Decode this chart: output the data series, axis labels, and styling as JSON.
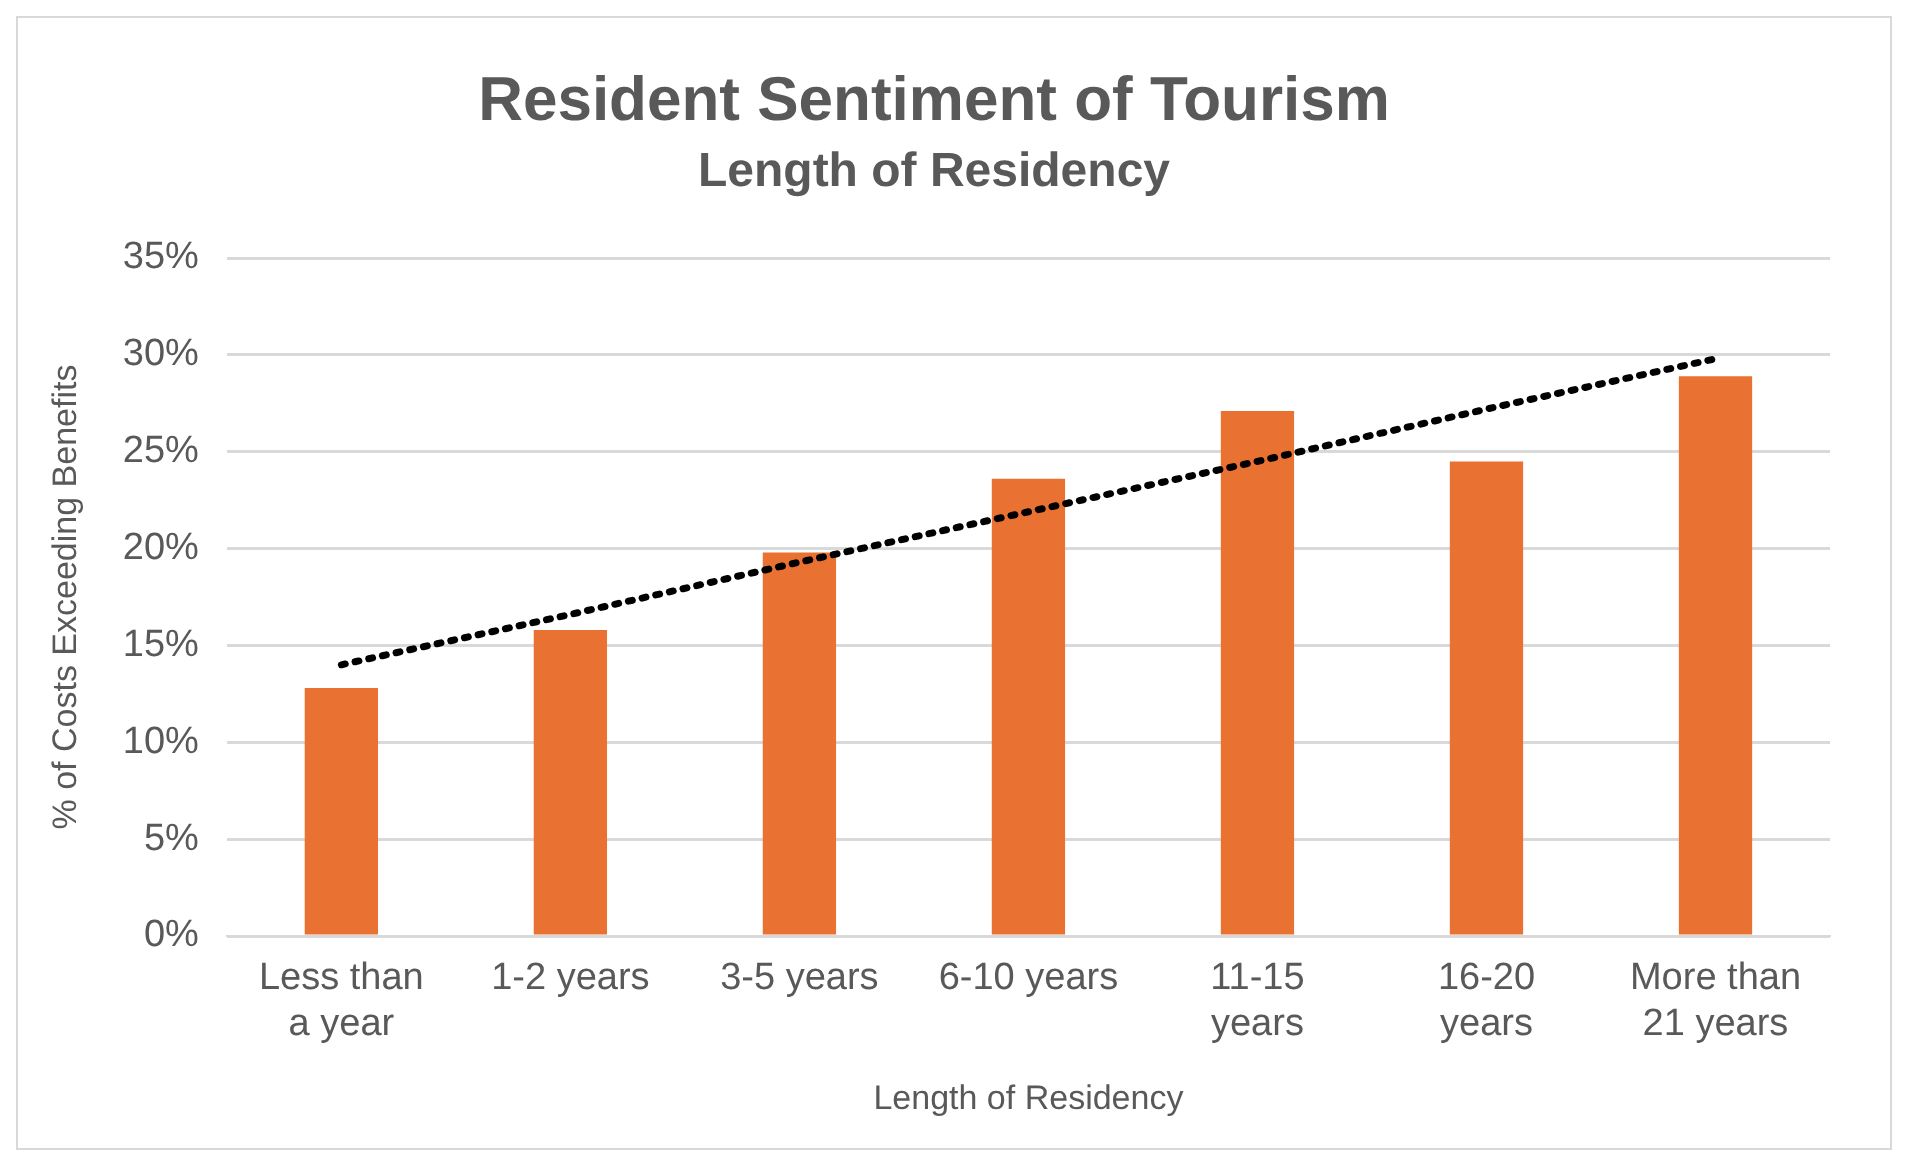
{
  "chart_data": {
    "type": "bar",
    "title": "Resident Sentiment of Tourism",
    "subtitle": "Length of Residency",
    "xlabel": "Length of Residency",
    "ylabel": "% of Costs Exceeding Benefits",
    "categories": [
      "Less than a year",
      "1-2 years",
      "3-5 years",
      "6-10 years",
      "11-15 years",
      "16-20 years",
      "More than 21 years"
    ],
    "series": [
      {
        "color": "#e97132",
        "values": [
          12.8,
          15.8,
          19.8,
          23.6,
          27.1,
          24.5,
          28.9
        ]
      },
      {
        "type": "line",
        "color": "#000000",
        "line_style": "dotted",
        "marker": "none",
        "values": [
          14.0,
          16.6,
          19.3,
          21.9,
          24.5,
          27.2,
          29.8
        ]
      }
    ],
    "ylim": [
      0,
      35
    ],
    "yticks": [
      {
        "value": 0,
        "label": "0%"
      },
      {
        "value": 5,
        "label": "5%"
      },
      {
        "value": 10,
        "label": "10%"
      },
      {
        "value": 15,
        "label": "15%"
      },
      {
        "value": 20,
        "label": "20%"
      },
      {
        "value": 25,
        "label": "25%"
      },
      {
        "value": 30,
        "label": "30%"
      },
      {
        "value": 35,
        "label": "35%"
      }
    ],
    "grid": "y",
    "legend": false
  }
}
